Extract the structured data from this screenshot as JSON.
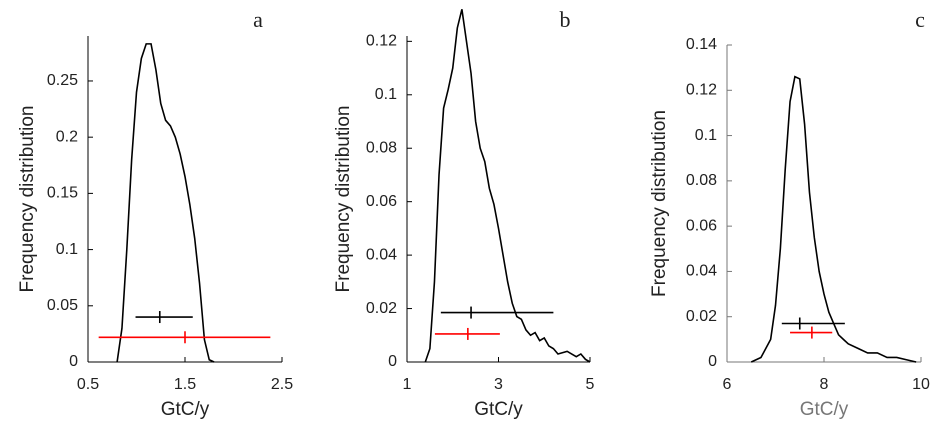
{
  "chart_data": [
    {
      "type": "line",
      "title": "a",
      "xlabel": "GtC/y",
      "ylabel": "Frequency distribution",
      "x": [
        0.8,
        0.85,
        0.9,
        0.95,
        1.0,
        1.05,
        1.1,
        1.15,
        1.2,
        1.25,
        1.3,
        1.35,
        1.4,
        1.45,
        1.5,
        1.55,
        1.6,
        1.65,
        1.7,
        1.75,
        1.8
      ],
      "values": [
        0,
        0.03,
        0.1,
        0.18,
        0.24,
        0.27,
        0.283,
        0.283,
        0.26,
        0.23,
        0.215,
        0.21,
        0.2,
        0.185,
        0.165,
        0.14,
        0.11,
        0.07,
        0.02,
        0.002,
        0
      ],
      "color": "#000000",
      "error_bars": [
        {
          "color": "#000000",
          "x": 1.24,
          "y": 0.04,
          "xmin": 0.99,
          "xmax": 1.58
        },
        {
          "color": "#ff0000",
          "x": 1.5,
          "y": 0.022,
          "xmin": 0.61,
          "xmax": 2.38
        }
      ],
      "xlim": [
        0.5,
        2.5
      ],
      "xticks": [
        0.5,
        1.5,
        2.5
      ],
      "ylim": [
        0,
        0.29
      ],
      "yticks": [
        0,
        0.05,
        0.1,
        0.15,
        0.2,
        0.25
      ]
    },
    {
      "type": "line",
      "title": "b",
      "xlabel": "GtC/y",
      "ylabel": "Frequency distribution",
      "x": [
        1.4,
        1.5,
        1.6,
        1.7,
        1.8,
        1.9,
        2.0,
        2.1,
        2.2,
        2.3,
        2.4,
        2.5,
        2.6,
        2.7,
        2.8,
        2.9,
        3.0,
        3.1,
        3.2,
        3.3,
        3.4,
        3.5,
        3.6,
        3.7,
        3.8,
        3.9,
        4.0,
        4.1,
        4.2,
        4.3,
        4.5,
        4.7,
        4.8,
        4.9,
        5.0
      ],
      "values": [
        0,
        0.005,
        0.03,
        0.07,
        0.095,
        0.102,
        0.11,
        0.125,
        0.132,
        0.12,
        0.108,
        0.09,
        0.08,
        0.075,
        0.065,
        0.059,
        0.05,
        0.04,
        0.03,
        0.022,
        0.017,
        0.016,
        0.012,
        0.01,
        0.011,
        0.008,
        0.009,
        0.006,
        0.005,
        0.003,
        0.004,
        0.002,
        0.003,
        0.001,
        0
      ],
      "color": "#000000",
      "error_bars": [
        {
          "color": "#000000",
          "x": 2.4,
          "y": 0.0185,
          "xmin": 1.74,
          "xmax": 4.2
        },
        {
          "color": "#ff0000",
          "x": 2.33,
          "y": 0.0105,
          "xmin": 1.61,
          "xmax": 3.03
        }
      ],
      "xlim": [
        1,
        5
      ],
      "xticks": [
        1,
        3,
        5
      ],
      "ylim": [
        0,
        0.122
      ],
      "yticks": [
        0,
        0.02,
        0.04,
        0.06,
        0.08,
        0.1,
        0.12
      ]
    },
    {
      "type": "line",
      "title": "c",
      "xlabel": "GtC/y",
      "ylabel": "Frequency distribution",
      "x": [
        6.5,
        6.7,
        6.9,
        7.0,
        7.1,
        7.2,
        7.3,
        7.4,
        7.5,
        7.6,
        7.7,
        7.8,
        7.9,
        8.0,
        8.1,
        8.2,
        8.3,
        8.4,
        8.5,
        8.7,
        8.9,
        9.1,
        9.3,
        9.5,
        9.7,
        9.9
      ],
      "values": [
        0,
        0.002,
        0.01,
        0.025,
        0.05,
        0.085,
        0.115,
        0.126,
        0.125,
        0.105,
        0.075,
        0.055,
        0.04,
        0.03,
        0.022,
        0.017,
        0.012,
        0.01,
        0.008,
        0.006,
        0.004,
        0.004,
        0.002,
        0.002,
        0.001,
        0
      ],
      "color": "#000000",
      "error_bars": [
        {
          "color": "#000000",
          "x": 7.5,
          "y": 0.017,
          "xmin": 7.13,
          "xmax": 8.43
        },
        {
          "color": "#ff0000",
          "x": 7.75,
          "y": 0.013,
          "xmin": 7.3,
          "xmax": 8.17
        }
      ],
      "xlim": [
        6,
        10
      ],
      "xticks": [
        6,
        8,
        10
      ],
      "ylim": [
        0,
        0.14
      ],
      "yticks": [
        0,
        0.02,
        0.04,
        0.06,
        0.08,
        0.1,
        0.12,
        0.14
      ]
    }
  ]
}
